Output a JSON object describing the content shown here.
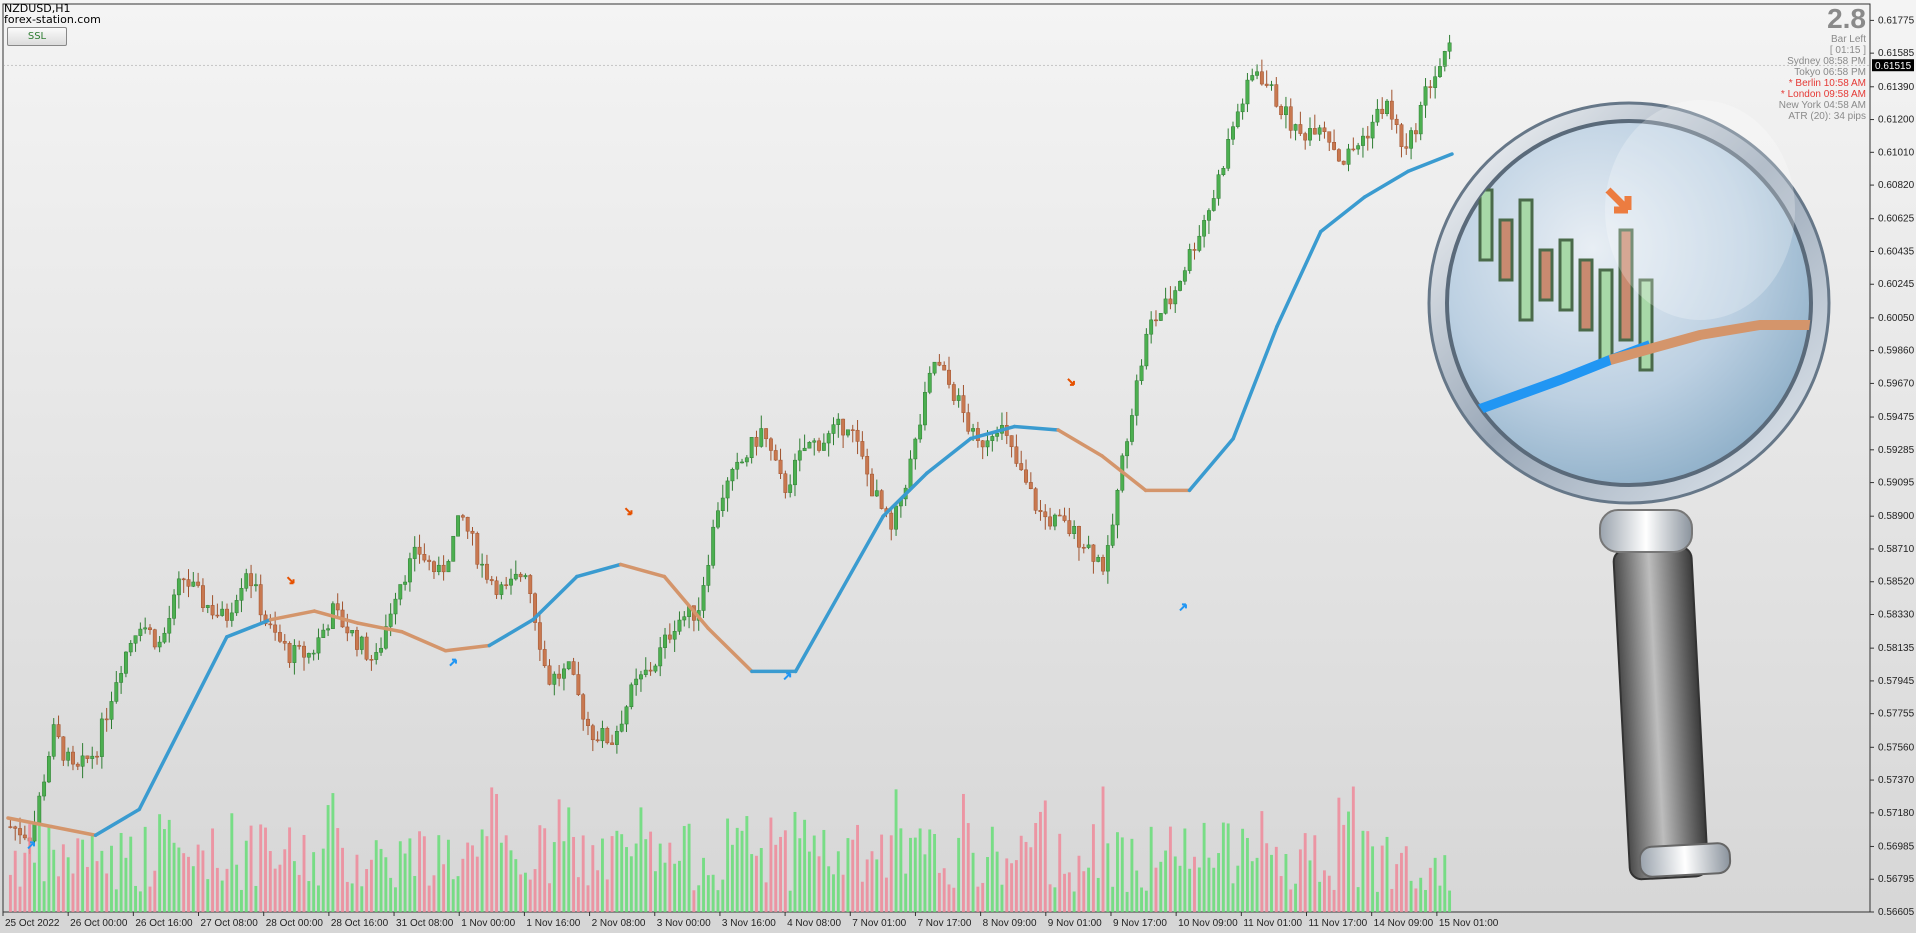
{
  "header": {
    "symbol": "NZDUSD,H1",
    "site": "forex-station.com",
    "indicator_button": "SSL"
  },
  "info_panel": {
    "big_value": "2.8",
    "rows": [
      {
        "label": "Bar Left",
        "value": "",
        "red": false
      },
      {
        "label": "[ 01:15 ]",
        "value": "",
        "red": false
      },
      {
        "label": "Sydney",
        "value": "08:58 PM",
        "red": false
      },
      {
        "label": "Tokyo",
        "value": "06:58 PM",
        "red": false
      },
      {
        "label": "* Berlin",
        "value": "10:58 AM",
        "red": true
      },
      {
        "label": "* London",
        "value": "09:58 AM",
        "red": true
      },
      {
        "label": "New York",
        "value": "04:58 AM",
        "red": false
      },
      {
        "label": "ATR (20): 34 pips",
        "value": "",
        "red": false
      }
    ]
  },
  "colors": {
    "bull": "#2e7d32",
    "bear": "#a0522d",
    "ssl_up": "#3a9bd0",
    "ssl_down": "#d4956b",
    "vol_up": "#66dd77",
    "vol_down": "#ee8899"
  },
  "chart_data": {
    "type": "candlestick",
    "symbol": "NZDUSD",
    "timeframe": "H1",
    "ylim": [
      0.56605,
      0.6187
    ],
    "y_ticks": [
      "0.61775",
      "0.61585",
      "0.61390",
      "0.61200",
      "0.61010",
      "0.60820",
      "0.60625",
      "0.60435",
      "0.60245",
      "0.60050",
      "0.59860",
      "0.59670",
      "0.59475",
      "0.59285",
      "0.59095",
      "0.58900",
      "0.58710",
      "0.58520",
      "0.58330",
      "0.58135",
      "0.57945",
      "0.57755",
      "0.57560",
      "0.57370",
      "0.57180",
      "0.56985",
      "0.56795",
      "0.56605"
    ],
    "x_ticks": [
      "25 Oct 2022",
      "26 Oct 00:00",
      "26 Oct 16:00",
      "27 Oct 08:00",
      "28 Oct 00:00",
      "28 Oct 16:00",
      "31 Oct 08:00",
      "1 Nov 00:00",
      "1 Nov 16:00",
      "2 Nov 08:00",
      "3 Nov 00:00",
      "3 Nov 16:00",
      "4 Nov 08:00",
      "7 Nov 01:00",
      "7 Nov 17:00",
      "8 Nov 09:00",
      "9 Nov 01:00",
      "9 Nov 17:00",
      "10 Nov 09:00",
      "11 Nov 01:00",
      "11 Nov 17:00",
      "14 Nov 09:00",
      "15 Nov 01:00"
    ],
    "current_price": "0.61515",
    "price_path": [
      0.571,
      0.5705,
      0.5765,
      0.574,
      0.5755,
      0.58,
      0.583,
      0.5815,
      0.5855,
      0.584,
      0.583,
      0.586,
      0.5825,
      0.581,
      0.581,
      0.5835,
      0.582,
      0.5805,
      0.585,
      0.587,
      0.5855,
      0.589,
      0.586,
      0.5845,
      0.586,
      0.5795,
      0.58,
      0.5765,
      0.576,
      0.579,
      0.5805,
      0.583,
      0.5835,
      0.59,
      0.592,
      0.594,
      0.5905,
      0.593,
      0.5935,
      0.5945,
      0.591,
      0.588,
      0.5925,
      0.598,
      0.596,
      0.593,
      0.5945,
      0.5915,
      0.589,
      0.5885,
      0.5875,
      0.586,
      0.594,
      0.6,
      0.6015,
      0.6045,
      0.6075,
      0.612,
      0.615,
      0.613,
      0.611,
      0.612,
      0.6095,
      0.611,
      0.613,
      0.61,
      0.614,
      0.616
    ],
    "ssl_line": [
      0.5715,
      0.571,
      0.5705,
      0.572,
      0.577,
      0.582,
      0.583,
      0.5835,
      0.5828,
      0.5823,
      0.5812,
      0.5815,
      0.583,
      0.5855,
      0.5862,
      0.5855,
      0.5825,
      0.58,
      0.58,
      0.5845,
      0.589,
      0.5915,
      0.5935,
      0.5942,
      0.594,
      0.5925,
      0.5905,
      0.5905,
      0.5935,
      0.6,
      0.6055,
      0.6075,
      0.609,
      0.61
    ],
    "ssl_trend": [
      "down",
      "down",
      "up",
      "up",
      "up",
      "up",
      "down",
      "down",
      "down",
      "down",
      "down",
      "up",
      "up",
      "up",
      "down",
      "down",
      "down",
      "up",
      "up",
      "up",
      "up",
      "up",
      "up",
      "up",
      "down",
      "down",
      "down",
      "up",
      "up",
      "up",
      "up",
      "up",
      "up",
      "up"
    ],
    "signals": [
      {
        "type": "buy",
        "x": 0.015,
        "price": 0.5702
      },
      {
        "type": "sell",
        "x": 0.154,
        "price": 0.585
      },
      {
        "type": "buy",
        "x": 0.241,
        "price": 0.5808
      },
      {
        "type": "sell",
        "x": 0.335,
        "price": 0.589
      },
      {
        "type": "buy",
        "x": 0.42,
        "price": 0.58
      },
      {
        "type": "sell",
        "x": 0.572,
        "price": 0.5965
      },
      {
        "type": "buy",
        "x": 0.632,
        "price": 0.584
      }
    ]
  },
  "magnifier": {
    "label": "magnifier-zoom-view"
  }
}
